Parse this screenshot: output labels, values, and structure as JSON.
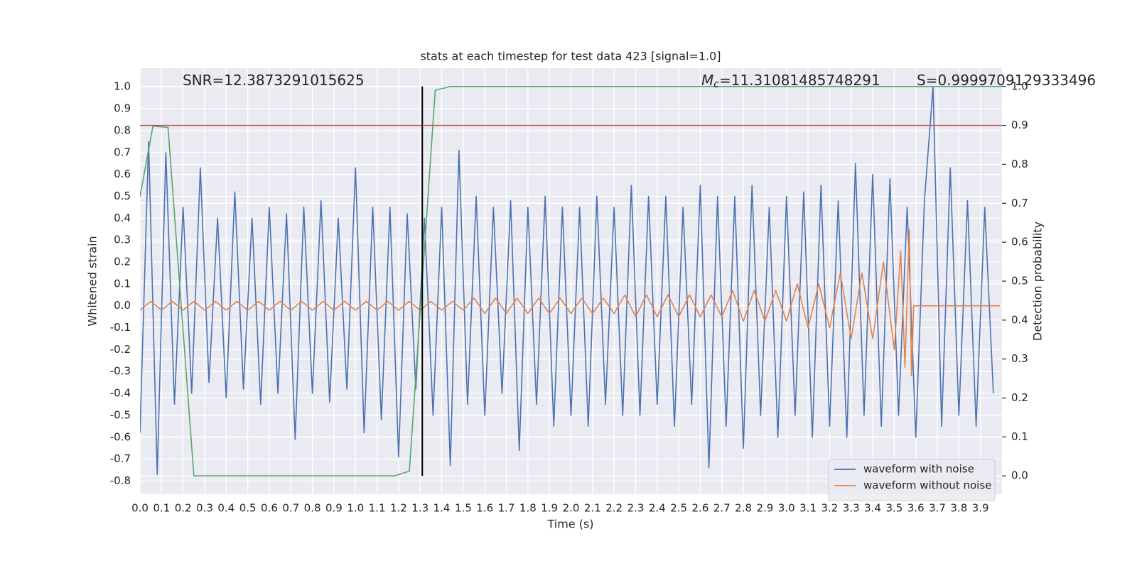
{
  "chart_data": {
    "type": "line",
    "title": "stats at each timestep for test data 423 [signal=1.0]",
    "x_label": "Time (s)",
    "y_label": "Whitened strain",
    "y2_label": "Detection probability",
    "annotations": [
      {
        "text": "SNR=12.3873291015625"
      },
      {
        "symbol": "M",
        "subscript": "c",
        "text": "=11.31081485748291"
      },
      {
        "text": "S=0.9999709129333496"
      }
    ],
    "grid": true,
    "legend": "lower right",
    "xlim": [
      0,
      4.0
    ],
    "ylim": [
      -0.86,
      1.085
    ],
    "y2lim": [
      -0.047,
      1.047
    ],
    "xticks": [
      {
        "value": 0,
        "label": "0.0"
      },
      0.1,
      0.2,
      0.3,
      0.4,
      0.5,
      0.6,
      0.7,
      0.8,
      0.9,
      {
        "value": 1,
        "label": "1.0"
      },
      1.1,
      1.2,
      1.3,
      1.4,
      1.5,
      1.6,
      1.7,
      1.8,
      1.9,
      {
        "value": 2,
        "label": "2.0"
      },
      2.1,
      2.2,
      2.3,
      2.4,
      2.5,
      2.6,
      2.7,
      2.8,
      2.9,
      {
        "value": 3,
        "label": "3.0"
      },
      3.1,
      3.2,
      3.3,
      3.4,
      3.5,
      3.6,
      3.7,
      3.8,
      3.9
    ],
    "yticks": [
      -0.8,
      -0.7,
      -0.6,
      -0.5,
      -0.4,
      -0.3,
      -0.2,
      -0.1,
      {
        "value": 0,
        "label": "0.0"
      },
      0.1,
      0.2,
      0.3,
      0.4,
      0.5,
      0.6,
      0.7,
      0.8,
      0.9,
      {
        "value": 1,
        "label": "1.0"
      }
    ],
    "y2ticks": [
      {
        "value": 0,
        "label": "0.0"
      },
      0.1,
      0.2,
      0.3,
      0.4,
      0.5,
      0.6,
      0.7,
      0.8,
      0.9,
      {
        "value": 1,
        "label": "1.0"
      }
    ],
    "hlines": [
      {
        "y": 0.9,
        "axis": "y2",
        "color": "#c44e52"
      }
    ],
    "vlines": [
      {
        "x": 1.31,
        "ymin": 0,
        "ymax": 1,
        "axis": "y2",
        "color": "#000000"
      }
    ],
    "series": [
      {
        "name": "waveform with noise",
        "color": "#4c72b0",
        "x": [
          0,
          0.04,
          0.08,
          0.12,
          0.16,
          0.2,
          0.24,
          0.28,
          0.32,
          0.36,
          0.4,
          0.44,
          0.48,
          0.52,
          0.56,
          0.6,
          0.64,
          0.68,
          0.72,
          0.76,
          0.8,
          0.84,
          0.88,
          0.92,
          0.96,
          1.0,
          1.04,
          1.08,
          1.12,
          1.16,
          1.2,
          1.24,
          1.28,
          1.32,
          1.36,
          1.4,
          1.44,
          1.48,
          1.52,
          1.56,
          1.6,
          1.64,
          1.68,
          1.72,
          1.76,
          1.8,
          1.84,
          1.88,
          1.92,
          1.96,
          2.0,
          2.04,
          2.08,
          2.12,
          2.16,
          2.2,
          2.24,
          2.28,
          2.32,
          2.36,
          2.4,
          2.44,
          2.48,
          2.52,
          2.56,
          2.6,
          2.64,
          2.68,
          2.72,
          2.76,
          2.8,
          2.84,
          2.88,
          2.92,
          2.96,
          3.0,
          3.04,
          3.08,
          3.12,
          3.16,
          3.2,
          3.24,
          3.28,
          3.32,
          3.36,
          3.4,
          3.44,
          3.48,
          3.52,
          3.56,
          3.6,
          3.64,
          3.68,
          3.72,
          3.76,
          3.8,
          3.84,
          3.88,
          3.92,
          3.96
        ],
        "values": [
          -0.58,
          0.75,
          -0.77,
          0.7,
          -0.45,
          0.45,
          -0.4,
          0.63,
          -0.35,
          0.4,
          -0.42,
          0.52,
          -0.38,
          0.4,
          -0.45,
          0.45,
          -0.4,
          0.42,
          -0.61,
          0.45,
          -0.4,
          0.48,
          -0.44,
          0.4,
          -0.38,
          0.63,
          -0.58,
          0.45,
          -0.52,
          0.45,
          -0.69,
          0.42,
          -0.38,
          0.4,
          -0.5,
          0.45,
          -0.73,
          0.71,
          -0.45,
          0.5,
          -0.5,
          0.45,
          -0.4,
          0.48,
          -0.66,
          0.45,
          -0.45,
          0.5,
          -0.55,
          0.45,
          -0.5,
          0.45,
          -0.55,
          0.5,
          -0.45,
          0.45,
          -0.5,
          0.55,
          -0.5,
          0.5,
          -0.45,
          0.5,
          -0.55,
          0.45,
          -0.45,
          0.55,
          -0.74,
          0.5,
          -0.55,
          0.5,
          -0.65,
          0.55,
          -0.5,
          0.45,
          -0.6,
          0.5,
          -0.5,
          0.52,
          -0.6,
          0.55,
          -0.55,
          0.48,
          -0.6,
          0.65,
          -0.5,
          0.6,
          -0.55,
          0.58,
          -0.5,
          0.45,
          -0.6,
          0.48,
          1.0,
          -0.55,
          0.63,
          -0.5,
          0.48,
          -0.55,
          0.45,
          -0.4
        ]
      },
      {
        "name": "waveform without noise",
        "color": "#dd8452",
        "x": [
          0,
          0.05,
          0.1,
          0.15,
          0.2,
          0.25,
          0.3,
          0.35,
          0.4,
          0.45,
          0.5,
          0.55,
          0.6,
          0.65,
          0.7,
          0.75,
          0.8,
          0.85,
          0.9,
          0.95,
          1.0,
          1.05,
          1.1,
          1.15,
          1.2,
          1.25,
          1.3,
          1.35,
          1.4,
          1.45,
          1.5,
          1.55,
          1.6,
          1.65,
          1.7,
          1.75,
          1.8,
          1.85,
          1.9,
          1.95,
          2.0,
          2.05,
          2.1,
          2.15,
          2.2,
          2.25,
          2.3,
          2.35,
          2.4,
          2.45,
          2.5,
          2.55,
          2.6,
          2.65,
          2.7,
          2.75,
          2.8,
          2.85,
          2.9,
          2.95,
          3.0,
          3.05,
          3.1,
          3.15,
          3.2,
          3.25,
          3.3,
          3.35,
          3.4,
          3.45,
          3.5,
          3.53,
          3.55,
          3.57,
          3.58,
          3.59,
          3.99
        ],
        "values": [
          -0.02,
          0.02,
          -0.02,
          0.02,
          -0.02,
          0.02,
          -0.02,
          0.02,
          -0.02,
          0.02,
          -0.02,
          0.02,
          -0.02,
          0.02,
          -0.02,
          0.02,
          -0.02,
          0.02,
          -0.02,
          0.02,
          -0.02,
          0.02,
          -0.02,
          0.02,
          -0.02,
          0.02,
          -0.02,
          0.02,
          -0.02,
          0.02,
          -0.02,
          0.035,
          -0.035,
          0.035,
          -0.035,
          0.035,
          -0.035,
          0.035,
          -0.035,
          0.035,
          -0.035,
          0.035,
          -0.035,
          0.035,
          -0.035,
          0.05,
          -0.05,
          0.05,
          -0.05,
          0.05,
          -0.05,
          0.05,
          -0.05,
          0.05,
          -0.05,
          0.07,
          -0.07,
          0.07,
          -0.07,
          0.07,
          -0.07,
          0.1,
          -0.1,
          0.1,
          -0.1,
          0.15,
          -0.15,
          0.15,
          -0.15,
          0.2,
          -0.2,
          0.25,
          -0.28,
          0.35,
          -0.32,
          0,
          0
        ]
      },
      {
        "color": "#55a868",
        "axis": "y2",
        "x": [
          0,
          0.06,
          0.13,
          0.25,
          1.18,
          1.25,
          1.37,
          1.44,
          4.0
        ],
        "values": [
          0.717,
          0.898,
          0.895,
          0,
          0,
          0.012,
          0.99,
          1.0,
          1.0
        ]
      }
    ]
  }
}
